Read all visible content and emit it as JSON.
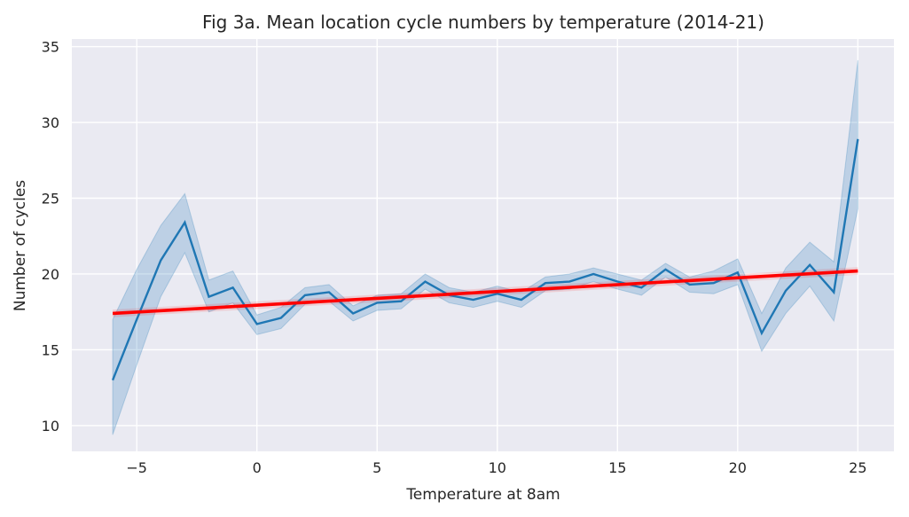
{
  "chart_data": {
    "type": "line",
    "title": "Fig 3a. Mean location cycle numbers by temperature (2014-21)",
    "xlabel": "Temperature at 8am",
    "ylabel": "Number of cycles",
    "xlim": [
      -7.7,
      26.5
    ],
    "ylim": [
      8.3,
      35.5
    ],
    "xticks": [
      -5,
      0,
      5,
      10,
      15,
      20,
      25
    ],
    "xtick_labels": [
      "−5",
      "0",
      "5",
      "10",
      "15",
      "20",
      "25"
    ],
    "yticks": [
      10,
      15,
      20,
      25,
      30,
      35
    ],
    "ytick_labels": [
      "10",
      "15",
      "20",
      "25",
      "30",
      "35"
    ],
    "grid": true,
    "legend": "none",
    "series": [
      {
        "kind": "mean-line-with-ci",
        "color": "#1f77b4",
        "x": [
          -6,
          -5,
          -4,
          -3,
          -2,
          -1,
          0,
          1,
          2,
          3,
          4,
          5,
          6,
          7,
          8,
          9,
          10,
          11,
          12,
          13,
          14,
          15,
          16,
          17,
          18,
          19,
          20,
          21,
          22,
          23,
          24,
          25
        ],
        "y": [
          13.0,
          17.0,
          20.9,
          23.4,
          18.5,
          19.1,
          16.7,
          17.1,
          18.6,
          18.8,
          17.4,
          18.1,
          18.2,
          19.5,
          18.6,
          18.3,
          18.7,
          18.3,
          19.4,
          19.5,
          20.0,
          19.5,
          19.1,
          20.3,
          19.3,
          19.4,
          20.1,
          16.1,
          18.9,
          20.6,
          18.8,
          28.9
        ],
        "ci_low": [
          9.4,
          14.0,
          18.5,
          21.4,
          17.5,
          18.1,
          16.0,
          16.4,
          18.0,
          18.2,
          16.9,
          17.6,
          17.7,
          19.0,
          18.1,
          17.8,
          18.2,
          17.8,
          18.9,
          19.0,
          19.5,
          19.0,
          18.6,
          19.8,
          18.8,
          18.7,
          19.3,
          14.9,
          17.4,
          19.2,
          16.9,
          24.3
        ],
        "ci_high": [
          17.0,
          20.3,
          23.2,
          25.3,
          19.6,
          20.2,
          17.3,
          17.8,
          19.1,
          19.3,
          17.9,
          18.6,
          18.7,
          20.0,
          19.1,
          18.8,
          19.2,
          18.8,
          19.8,
          20.0,
          20.4,
          20.0,
          19.6,
          20.7,
          19.8,
          20.2,
          21.0,
          17.4,
          20.4,
          22.1,
          20.8,
          34.1
        ]
      },
      {
        "kind": "regression-line",
        "color": "#ff0000",
        "x": [
          -6,
          25
        ],
        "y": [
          17.4,
          20.2
        ]
      }
    ]
  }
}
